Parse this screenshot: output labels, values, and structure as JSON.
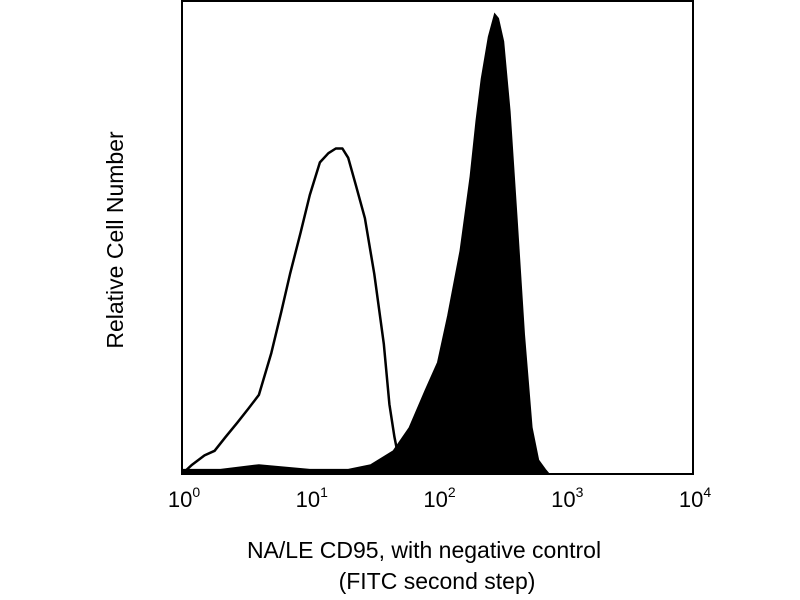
{
  "chart_data": {
    "type": "area",
    "title": "",
    "xlabel_lines": [
      "NA/LE CD95, with negative control",
      "(FITC second step)"
    ],
    "ylabel": "Relative Cell Number",
    "x_scale": "log",
    "xlim": [
      1,
      10000
    ],
    "ylim": [
      0,
      100
    ],
    "x_ticks": [
      {
        "value": 1,
        "base": "10",
        "exp": "0"
      },
      {
        "value": 10,
        "base": "10",
        "exp": "1"
      },
      {
        "value": 100,
        "base": "10",
        "exp": "2"
      },
      {
        "value": 1000,
        "base": "10",
        "exp": "3"
      },
      {
        "value": 10000,
        "base": "10",
        "exp": "4"
      }
    ],
    "grid": false,
    "legend": "none",
    "series": [
      {
        "style": "outline",
        "color": "#000000",
        "x": [
          1.0,
          1.2,
          1.5,
          1.8,
          2.2,
          2.7,
          3.3,
          4.0,
          5.0,
          6.0,
          7.0,
          8.5,
          10.0,
          12.0,
          14.0,
          16.0,
          18.0,
          20.0,
          23.0,
          27.0,
          32.0,
          38.0,
          42.0,
          46.0,
          50.0,
          60.0
        ],
        "y": [
          0,
          2,
          4,
          5,
          8,
          11,
          14,
          17,
          26,
          35,
          43,
          52,
          60,
          67,
          69,
          70,
          70,
          68,
          62,
          55,
          43,
          28,
          15,
          8,
          3,
          0
        ]
      },
      {
        "style": "filled",
        "color": "#000000",
        "x": [
          1.0,
          2.0,
          4.0,
          10.0,
          20.0,
          30.0,
          45.0,
          60.0,
          80.0,
          100.0,
          120.0,
          150.0,
          180.0,
          200.0,
          220.0,
          250.0,
          280.0,
          300.0,
          330.0,
          370.0,
          420.0,
          480.0,
          550.0,
          620.0,
          700.0,
          750.0
        ],
        "y": [
          1,
          1,
          2,
          1,
          1,
          2,
          5,
          10,
          18,
          24,
          34,
          48,
          64,
          76,
          85,
          94,
          99,
          98,
          93,
          78,
          55,
          30,
          10,
          3,
          1,
          0
        ]
      }
    ]
  }
}
